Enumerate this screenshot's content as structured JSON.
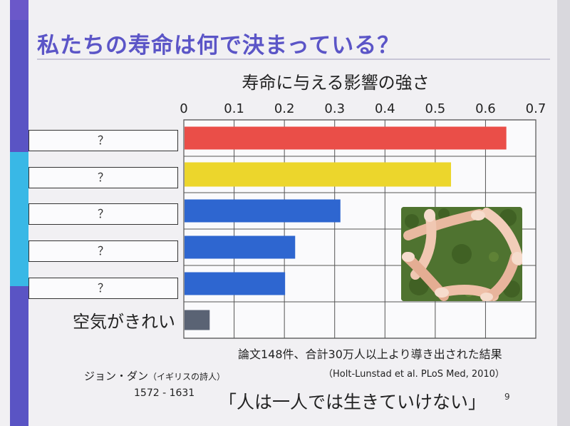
{
  "slide": {
    "title": "私たちの寿命は何で決まっている？",
    "page_number": "9"
  },
  "chart_data": {
    "type": "bar",
    "orientation": "horizontal",
    "title": "寿命に与える影響の強さ",
    "xlim": [
      0,
      0.7
    ],
    "x_ticks": [
      "0",
      "0.1",
      "0.2",
      "0.3",
      "0.4",
      "0.5",
      "0.6",
      "0.7"
    ],
    "grid": true,
    "categories": [
      "？",
      "？",
      "？",
      "？",
      "？",
      "空気がきれい"
    ],
    "values": [
      0.64,
      0.53,
      0.31,
      0.22,
      0.2,
      0.05
    ],
    "colors": [
      "#ea4e48",
      "#ecd62c",
      "#2e66d0",
      "#2e66d0",
      "#2e66d0",
      "#5a6374"
    ]
  },
  "photo": {
    "icon": "joined-hands-photo"
  },
  "footnote": {
    "summary": "論文148件、合計30万人以上より導き出された結果",
    "citation": "（Holt-Lunstad et al. PLoS Med, 2010）"
  },
  "quote": {
    "author_name": "ジョン・ダン",
    "author_desc": "（イギリスの詩人）",
    "years": "1572 - 1631",
    "text": "「人は一人では生きていけない」"
  }
}
